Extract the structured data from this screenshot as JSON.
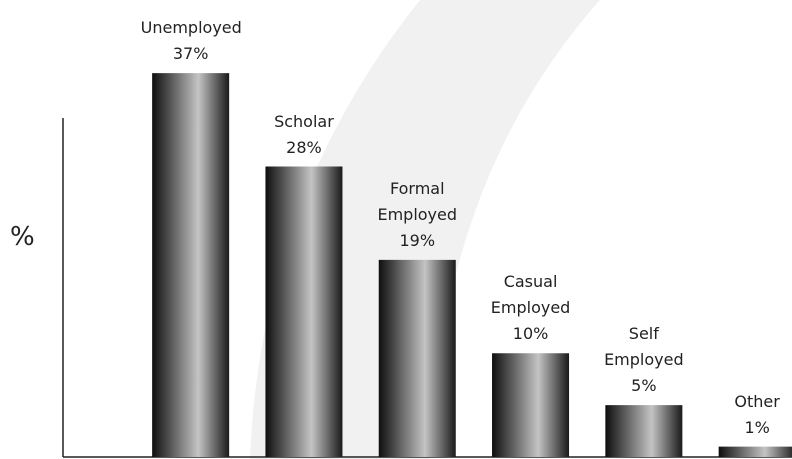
{
  "chart_data": {
    "type": "bar",
    "ylabel": "%",
    "categories": [
      "Unemployed",
      "Scholar",
      "Formal Employed",
      "Casual Employed",
      "Self Employed",
      "Other"
    ],
    "values": [
      37,
      28,
      19,
      10,
      5,
      1
    ],
    "value_labels": [
      "37%",
      "28%",
      "19%",
      "10%",
      "5%",
      "1%"
    ],
    "ylim": [
      0,
      40
    ]
  }
}
